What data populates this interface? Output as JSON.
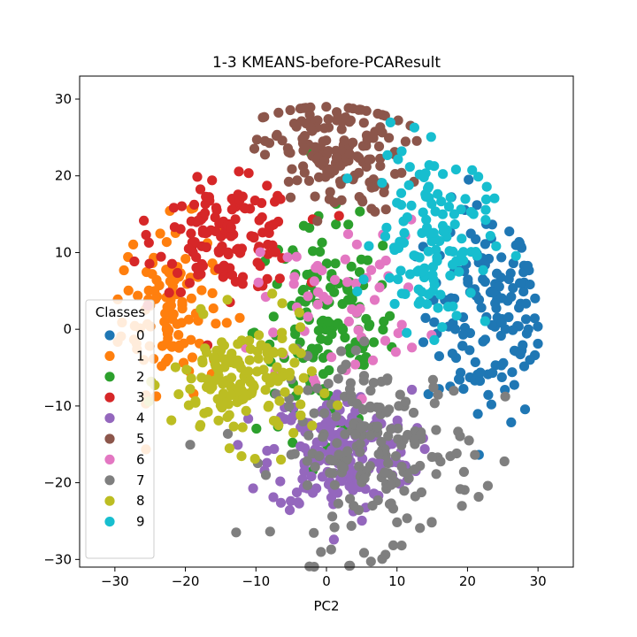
{
  "chart_data": {
    "type": "scatter",
    "title": "1-3 KMEANS-before-PCAResult",
    "xlabel": "PC2",
    "ylabel": "",
    "xlim": [
      -35,
      35
    ],
    "ylim": [
      -31,
      33
    ],
    "xticks": [
      -30,
      -20,
      -10,
      0,
      10,
      20,
      30
    ],
    "yticks": [
      -30,
      -20,
      -10,
      0,
      10,
      20,
      30
    ],
    "grid": false,
    "legend": {
      "title": "Classes",
      "placement": "center-left"
    },
    "series": [
      {
        "name": "0",
        "color": "#1f77b4",
        "center": [
          23,
          2
        ],
        "spread": [
          4.5,
          7
        ],
        "count": 150
      },
      {
        "name": "1",
        "color": "#ff7f0e",
        "center": [
          -22,
          3
        ],
        "spread": [
          3.5,
          5.5
        ],
        "count": 120
      },
      {
        "name": "2",
        "color": "#2ca02c",
        "center": [
          0,
          0
        ],
        "spread": [
          5,
          7
        ],
        "count": 140
      },
      {
        "name": "3",
        "color": "#d62728",
        "center": [
          -14,
          12
        ],
        "spread": [
          5,
          3.5
        ],
        "count": 140
      },
      {
        "name": "4",
        "color": "#9467bd",
        "center": [
          2,
          -16
        ],
        "spread": [
          5,
          4
        ],
        "count": 200
      },
      {
        "name": "5",
        "color": "#8c564b",
        "center": [
          1,
          23
        ],
        "spread": [
          5,
          4
        ],
        "count": 160
      },
      {
        "name": "6",
        "color": "#e377c2",
        "center": [
          2,
          4
        ],
        "spread": [
          6,
          5
        ],
        "count": 60
      },
      {
        "name": "7",
        "color": "#7f7f7f",
        "center": [
          7,
          -16
        ],
        "spread": [
          7,
          6
        ],
        "count": 200
      },
      {
        "name": "8",
        "color": "#bcbd22",
        "center": [
          -12,
          -7
        ],
        "spread": [
          5,
          4
        ],
        "count": 150
      },
      {
        "name": "9",
        "color": "#17becf",
        "center": [
          15,
          12
        ],
        "spread": [
          4,
          6
        ],
        "count": 130
      }
    ]
  }
}
